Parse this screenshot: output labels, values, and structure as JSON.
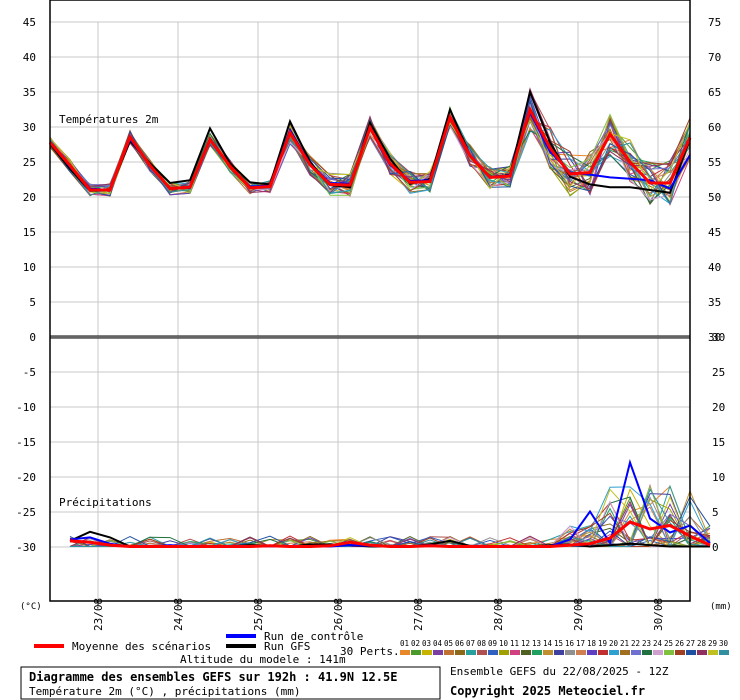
{
  "chart_data": {
    "type": "line",
    "title": "Diagramme des ensembles GEFS sur 192h : 41.9N 12.5E",
    "subtitle": "Température 2m (°C) , précipitations (mm)",
    "altitude": "Altitude du modele : 141m",
    "run_info": "Ensemble GEFS du 22/08/2025 - 12Z",
    "copyright": "Copyright 2025 Meteociel.fr",
    "temp_panel_label": "Températures 2m",
    "precip_panel_label": "Précipitations",
    "left_unit": "(°C)",
    "right_unit": "(mm)",
    "left_ticks": [
      45,
      40,
      35,
      30,
      25,
      20,
      15,
      10,
      5,
      0,
      -5,
      -10,
      -15,
      -20,
      -25,
      -30
    ],
    "right_top_ticks": [
      75,
      70,
      65,
      60,
      55,
      50,
      45,
      40,
      35,
      30
    ],
    "right_bottom_ticks": [
      30,
      25,
      20,
      15,
      10,
      5,
      0
    ],
    "x_labels": [
      "23/08",
      "24/08",
      "25/08",
      "26/08",
      "27/08",
      "28/08",
      "29/08",
      "30/08"
    ],
    "legend": {
      "mean": "Moyenne des scénarios",
      "control": "Run de contrôle",
      "gfs": "Run GFS",
      "perts": "30 Perts."
    },
    "pert_numbers": [
      "01",
      "02",
      "03",
      "04",
      "05",
      "06",
      "07",
      "08",
      "09",
      "10",
      "11",
      "12",
      "13",
      "14",
      "15",
      "16",
      "17",
      "18",
      "19",
      "20",
      "21",
      "22",
      "23",
      "24",
      "25",
      "26",
      "27",
      "28",
      "29",
      "30"
    ],
    "pert_colors": [
      "#e8862a",
      "#4c9a2a",
      "#c8b400",
      "#7a3fa0",
      "#c07030",
      "#8c6a1a",
      "#28a0a0",
      "#b05050",
      "#3060c0",
      "#a0a000",
      "#d04080",
      "#506020",
      "#20a060",
      "#c09030",
      "#4040a0",
      "#909090",
      "#d08050",
      "#6040c0",
      "#c03030",
      "#30a0d0",
      "#a07020",
      "#7070d0",
      "#207040",
      "#d0a0d0",
      "#80c040",
      "#a04020",
      "#2050a0",
      "#903060",
      "#c0c020",
      "#3090a0"
    ],
    "series": [
      {
        "name": "Moyenne des scénarios",
        "color": "#ff0000",
        "temperature": [
          27.8,
          24.5,
          21.0,
          21.0,
          28.6,
          24.5,
          21.2,
          21.4,
          28.2,
          24.4,
          21.3,
          21.5,
          29.2,
          24.6,
          21.8,
          21.7,
          29.9,
          24.8,
          22.1,
          22.2,
          31.4,
          25.9,
          22.8,
          23.0,
          32.5,
          27.0,
          23.3,
          23.5,
          29.0,
          25.0,
          22.0,
          22.0,
          28.5
        ],
        "precipitation": [
          0.8,
          0.6,
          0.2,
          0.0,
          0.0,
          0.0,
          0.0,
          0.0,
          0.0,
          0.0,
          0.1,
          0.0,
          0.0,
          0.1,
          0.6,
          0.2,
          0.0,
          0.0,
          0.1,
          0.0,
          0.0,
          0.0,
          0.0,
          0.0,
          0.0,
          0.2,
          0.4,
          1.2,
          3.5,
          2.5,
          3.0,
          1.5,
          0.2
        ]
      },
      {
        "name": "Run de contrôle",
        "color": "#0000ff",
        "temperature": [
          27.9,
          24.3,
          21.2,
          21.0,
          28.3,
          24.5,
          21.2,
          21.3,
          28.4,
          24.3,
          21.5,
          21.6,
          29.6,
          24.7,
          22.0,
          21.9,
          29.8,
          24.6,
          22.3,
          22.4,
          31.5,
          25.8,
          22.9,
          23.1,
          32.1,
          26.5,
          23.5,
          23.2,
          22.8,
          22.6,
          22.4,
          21.2,
          26.0
        ],
        "precipitation": [
          1.0,
          1.3,
          0.4,
          0.0,
          0.0,
          0.2,
          0.0,
          0.0,
          0.0,
          0.0,
          0.0,
          0.0,
          0.0,
          0.0,
          0.2,
          0.1,
          0.0,
          0.0,
          0.2,
          0.0,
          0.0,
          0.0,
          0.0,
          0.0,
          0.0,
          1.0,
          5.0,
          0.5,
          12.0,
          4.0,
          2.0,
          3.0,
          0.5
        ]
      },
      {
        "name": "Run GFS",
        "color": "#000000",
        "temperature": [
          27.6,
          24.0,
          20.9,
          21.0,
          28.0,
          24.8,
          22.0,
          22.4,
          29.8,
          24.8,
          22.1,
          21.8,
          30.8,
          25.0,
          21.7,
          21.4,
          30.6,
          25.5,
          21.9,
          22.6,
          32.5,
          26.0,
          22.8,
          23.2,
          35.0,
          27.8,
          22.9,
          21.8,
          21.4,
          21.4,
          21.0,
          20.6,
          28.3
        ],
        "precipitation": [
          0.8,
          2.1,
          1.3,
          0.0,
          0.0,
          0.0,
          0.0,
          0.0,
          0.0,
          0.2,
          0.1,
          0.0,
          0.3,
          0.3,
          0.2,
          0.0,
          0.0,
          0.0,
          0.3,
          0.8,
          0.1,
          0.0,
          0.0,
          0.0,
          0.2,
          0.3,
          0.0,
          0.2,
          0.4,
          0.2,
          0.0,
          0.0,
          0.0
        ]
      }
    ],
    "x_range_steps": [
      0,
      64
    ],
    "ylim_temp": [
      0,
      45
    ],
    "ylim_precip_mm": [
      0,
      30
    ]
  }
}
